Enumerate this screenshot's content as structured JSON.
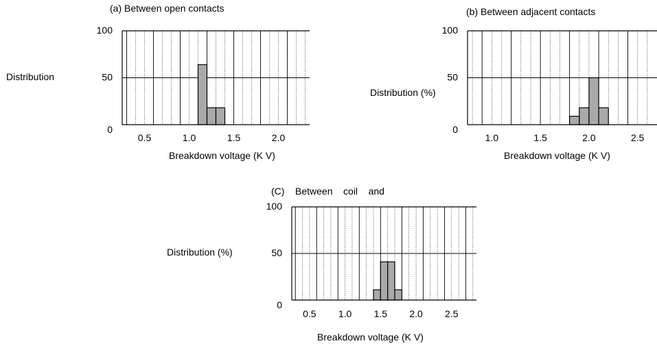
{
  "chart_data": [
    {
      "type": "bar",
      "title": "(a) Between open contacts",
      "xlabel": "Breakdown voltage (K V)",
      "ylabel": "Distribution",
      "yticks": [
        0,
        50,
        100
      ],
      "ylim": [
        0,
        100
      ],
      "xlim": [
        0.25,
        2.35
      ],
      "xticks": [
        "0.5",
        "1.0",
        "1.5",
        "2.0"
      ],
      "bin_width": 0.1,
      "bins": [
        {
          "x": 1.15,
          "value": 64
        },
        {
          "x": 1.25,
          "value": 18
        },
        {
          "x": 1.35,
          "value": 18
        }
      ],
      "grid": "vertical lines every 0.1 kV, solid every 0.3 kV; horizontal line at 50"
    },
    {
      "type": "bar",
      "title": "(b) Between adjacent contacts",
      "xlabel": "Breakdown voltage (K V)",
      "ylabel": "Distribution (%)",
      "yticks": [
        0,
        50,
        100
      ],
      "ylim": [
        0,
        100
      ],
      "xlim": [
        0.75,
        2.7
      ],
      "xticks": [
        "1.0",
        "1.5",
        "2.0",
        "2.5"
      ],
      "bin_width": 0.1,
      "bins": [
        {
          "x": 1.85,
          "value": 9
        },
        {
          "x": 1.95,
          "value": 18
        },
        {
          "x": 2.05,
          "value": 50
        },
        {
          "x": 2.15,
          "value": 18
        }
      ],
      "grid": "vertical lines every 0.1 kV, solid every 0.3 kV; horizontal line at 50"
    },
    {
      "type": "bar",
      "title": "(C)    Between    coil    and",
      "xlabel": "Breakdown voltage (K V)",
      "ylabel": "Distribution (%)",
      "yticks": [
        0,
        50,
        100
      ],
      "ylim": [
        0,
        100
      ],
      "xlim": [
        0.25,
        2.85
      ],
      "xticks": [
        "0.5",
        "1.0",
        "1.5",
        "2.0",
        "2.5"
      ],
      "bin_width": 0.1,
      "bins": [
        {
          "x": 1.45,
          "value": 11
        },
        {
          "x": 1.55,
          "value": 41
        },
        {
          "x": 1.65,
          "value": 41
        },
        {
          "x": 1.75,
          "value": 11
        }
      ],
      "grid": "vertical lines every 0.1 kV, solid every 0.3 kV; horizontal line at 50"
    }
  ],
  "colors": {
    "bar_fill": "#a9a9a9",
    "bar_stroke": "#000000",
    "grid": "#000000",
    "background": "#ffffff"
  }
}
